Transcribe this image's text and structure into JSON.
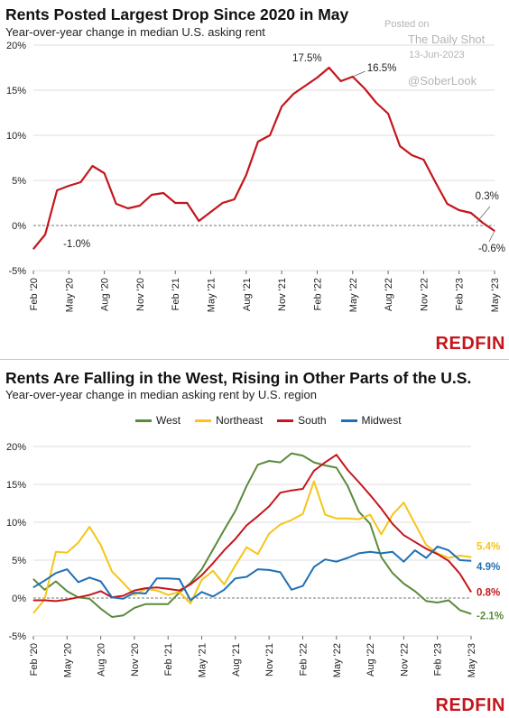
{
  "watermark": {
    "line1": "Posted on",
    "line2": "The Daily Shot",
    "line3": "13-Jun-2023",
    "line4": "@SoberLook"
  },
  "chart_data": [
    {
      "type": "line",
      "title": "Rents Posted Largest Drop Since 2020 in May",
      "subtitle": "Year-over-year change in median U.S. asking rent",
      "brand": "REDFIN",
      "ylim": [
        -5,
        20
      ],
      "yticks": [
        "-5%",
        "0%",
        "5%",
        "10%",
        "15%",
        "20%"
      ],
      "xtick_labels": [
        "Feb '20",
        "May '20",
        "Aug '20",
        "Nov '20",
        "Feb '21",
        "May '21",
        "Aug '21",
        "Nov '21",
        "Feb '22",
        "May '22",
        "Aug '22",
        "Nov '22",
        "Feb '23",
        "May '23"
      ],
      "grid": "horizontal",
      "colors": {
        "line": "#c4161c",
        "zero": "#888888",
        "grid": "#dcdcdc"
      },
      "series": [
        {
          "values": [
            -2.6,
            -1.0,
            3.9,
            4.4,
            4.8,
            6.6,
            5.8,
            2.4,
            1.9,
            2.2,
            3.4,
            3.6,
            2.5,
            2.5,
            0.5,
            1.5,
            2.5,
            2.9,
            5.6,
            9.3,
            10.0,
            13.2,
            14.6,
            15.5,
            16.4,
            17.5,
            16.0,
            16.5,
            15.2,
            13.6,
            12.4,
            8.8,
            7.8,
            7.3,
            4.8,
            2.4,
            1.7,
            1.4,
            0.3,
            -0.6
          ]
        }
      ],
      "annotations": [
        {
          "text": "-1.0%",
          "index": 1
        },
        {
          "text": "17.5%",
          "index": 25
        },
        {
          "text": "16.5%",
          "index": 27
        },
        {
          "text": "0.3%",
          "index": 38
        },
        {
          "text": "-0.6%",
          "index": 39
        }
      ]
    },
    {
      "type": "line",
      "title": "Rents Are Falling in the West, Rising in Other Parts of the U.S.",
      "subtitle": "Year-over-year change in median asking rent by U.S. region",
      "brand": "REDFIN",
      "ylim": [
        -5,
        20
      ],
      "yticks": [
        "-5%",
        "0%",
        "5%",
        "10%",
        "15%",
        "20%"
      ],
      "xtick_labels": [
        "Feb '20",
        "May '20",
        "Aug '20",
        "Nov '20",
        "Feb '21",
        "May '21",
        "Aug '21",
        "Nov '21",
        "Feb '22",
        "May '22",
        "Aug '22",
        "Nov '22",
        "Feb '23",
        "May '23"
      ],
      "grid": "horizontal",
      "legend": "top",
      "series": [
        {
          "name": "West",
          "color": "#5b8a3c",
          "end_label": "-2.1%",
          "values": [
            2.5,
            1.1,
            2.2,
            0.9,
            0.1,
            -0.1,
            -1.4,
            -2.5,
            -2.3,
            -1.3,
            -0.8,
            -0.8,
            -0.8,
            0.7,
            2.0,
            3.8,
            6.4,
            9.0,
            11.5,
            14.8,
            17.6,
            18.1,
            17.9,
            19.1,
            18.8,
            17.9,
            17.5,
            17.2,
            14.8,
            11.4,
            9.8,
            5.4,
            3.3,
            1.9,
            0.9,
            -0.4,
            -0.6,
            -0.3,
            -1.6,
            -2.1
          ]
        },
        {
          "name": "Northeast",
          "color": "#f5c518",
          "end_label": "5.4%",
          "values": [
            -2.0,
            -0.2,
            6.1,
            6.0,
            7.3,
            9.4,
            7.0,
            3.5,
            2.0,
            0.4,
            1.2,
            1.0,
            0.4,
            0.8,
            -0.7,
            2.4,
            3.6,
            1.8,
            4.3,
            6.7,
            5.8,
            8.5,
            9.7,
            10.3,
            11.1,
            15.4,
            11.0,
            10.5,
            10.5,
            10.4,
            11.0,
            8.4,
            11.0,
            12.6,
            9.8,
            7.0,
            5.9,
            5.3,
            5.6,
            5.4
          ]
        },
        {
          "name": "South",
          "color": "#c4161c",
          "end_label": "0.8%",
          "values": [
            -0.3,
            -0.3,
            -0.4,
            -0.2,
            0.1,
            0.4,
            0.9,
            0.1,
            0.3,
            1.0,
            1.3,
            1.4,
            1.2,
            1.0,
            1.8,
            3.0,
            4.6,
            6.3,
            7.8,
            9.6,
            10.8,
            12.1,
            13.9,
            14.2,
            14.4,
            16.8,
            17.9,
            18.9,
            16.9,
            15.3,
            13.6,
            11.8,
            9.8,
            8.3,
            7.4,
            6.5,
            5.8,
            4.9,
            3.2,
            0.8
          ]
        },
        {
          "name": "Midwest",
          "color": "#1f6fb5",
          "end_label": "4.9%",
          "values": [
            1.4,
            2.3,
            3.3,
            3.8,
            2.1,
            2.7,
            2.2,
            0.1,
            -0.1,
            0.7,
            0.6,
            2.6,
            2.6,
            2.5,
            -0.3,
            0.8,
            0.2,
            1.1,
            2.6,
            2.8,
            3.8,
            3.7,
            3.4,
            1.1,
            1.6,
            4.1,
            5.1,
            4.8,
            5.3,
            5.9,
            6.1,
            5.9,
            6.1,
            4.8,
            6.3,
            5.3,
            6.8,
            6.3,
            5.0,
            4.9
          ]
        }
      ]
    }
  ]
}
